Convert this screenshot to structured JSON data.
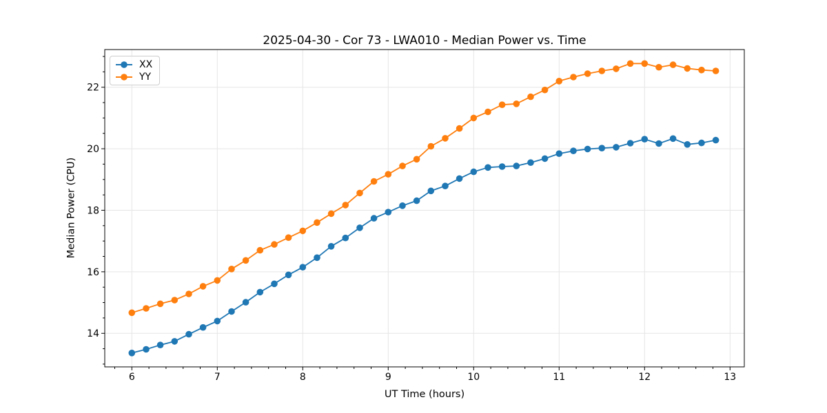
{
  "chart_data": {
    "type": "line",
    "title": "2025-04-30 - Cor 73 - LWA010 - Median Power vs. Time",
    "xlabel": "UT Time (hours)",
    "ylabel": "Median Power (CPU)",
    "legend_position": "upper-left",
    "grid": true,
    "xlim": [
      5.683,
      13.167
    ],
    "ylim": [
      12.909,
      23.224
    ],
    "x_ticks": [
      6,
      7,
      8,
      9,
      10,
      11,
      12,
      13
    ],
    "y_ticks": [
      14,
      16,
      18,
      20,
      22
    ],
    "minor_x_step": 0.2,
    "minor_y_step": 0.5,
    "x": [
      6,
      6.167,
      6.333,
      6.5,
      6.667,
      6.833,
      7,
      7.167,
      7.333,
      7.5,
      7.667,
      7.833,
      8,
      8.167,
      8.333,
      8.5,
      8.667,
      8.833,
      9,
      9.167,
      9.333,
      9.5,
      9.667,
      9.833,
      10,
      10.167,
      10.333,
      10.5,
      10.667,
      10.833,
      11,
      11.167,
      11.333,
      11.5,
      11.667,
      11.833,
      12,
      12.167,
      12.333,
      12.5,
      12.667,
      12.833
    ],
    "series": [
      {
        "name": "XX",
        "color": "#1f77b4",
        "marker": "circle",
        "values": [
          13.36,
          13.48,
          13.62,
          13.74,
          13.97,
          14.19,
          14.4,
          14.71,
          15.01,
          15.34,
          15.61,
          15.9,
          16.15,
          16.46,
          16.83,
          17.1,
          17.43,
          17.74,
          17.94,
          18.15,
          18.31,
          18.63,
          18.79,
          19.03,
          19.25,
          19.39,
          19.42,
          19.44,
          19.55,
          19.68,
          19.84,
          19.93,
          19.99,
          20.02,
          20.05,
          20.18,
          20.31,
          20.17,
          20.33,
          20.14,
          20.19,
          20.28
        ]
      },
      {
        "name": "YY",
        "color": "#ff7f0e",
        "marker": "circle",
        "values": [
          14.67,
          14.81,
          14.96,
          15.08,
          15.28,
          15.53,
          15.72,
          16.09,
          16.37,
          16.7,
          16.89,
          17.11,
          17.33,
          17.6,
          17.89,
          18.17,
          18.56,
          18.94,
          19.17,
          19.44,
          19.66,
          20.08,
          20.34,
          20.66,
          21.0,
          21.2,
          21.43,
          21.46,
          21.69,
          21.91,
          22.2,
          22.33,
          22.44,
          22.53,
          22.6,
          22.77,
          22.77,
          22.65,
          22.73,
          22.61,
          22.56,
          22.53
        ]
      }
    ],
    "colors": {
      "grid": "#e5e5e5",
      "spine": "#000000",
      "text": "#000000"
    }
  }
}
